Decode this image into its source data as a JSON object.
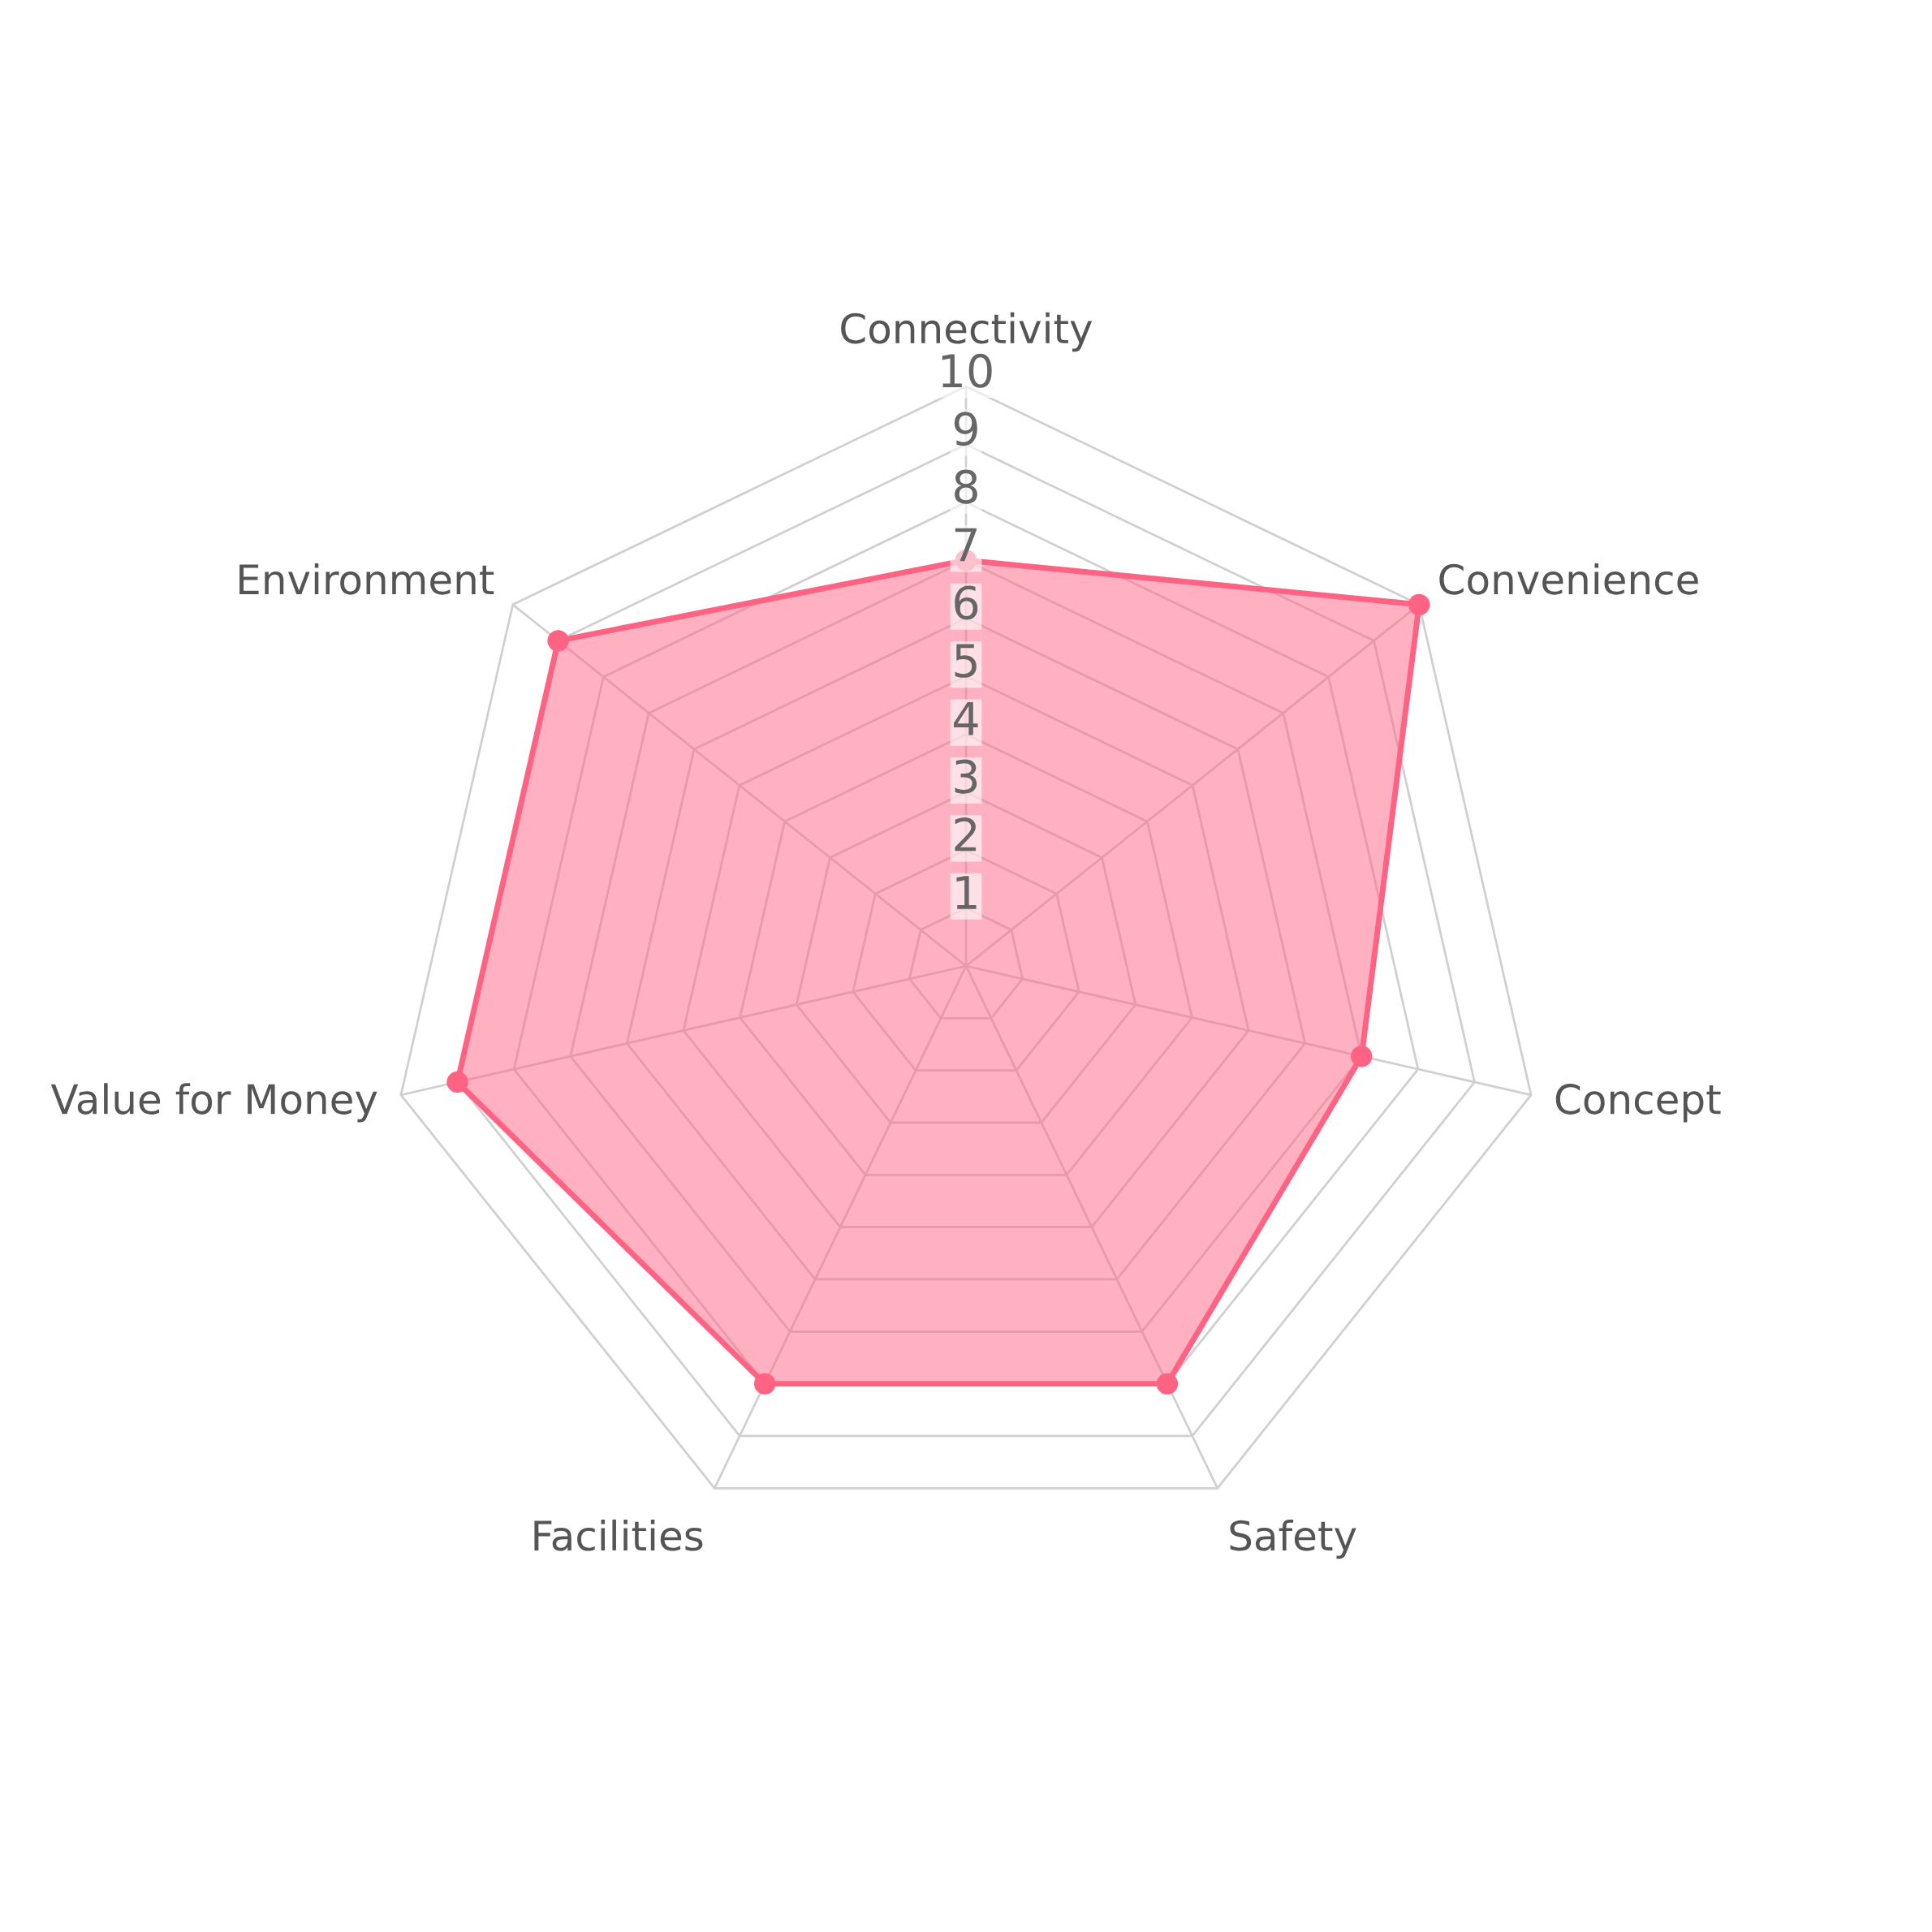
{
  "chart_data": {
    "type": "radar",
    "categories": [
      "Connectivity",
      "Convenience",
      "Concept",
      "Safety",
      "Facilities",
      "Value for Money",
      "Environment"
    ],
    "series": [
      {
        "color": "#ff6384",
        "values": [
          7,
          10,
          7,
          8,
          8,
          9,
          9
        ]
      }
    ],
    "ylim": [
      0,
      10
    ],
    "yticks": [
      1,
      2,
      3,
      4,
      5,
      6,
      7,
      8,
      9,
      10
    ],
    "grid": true,
    "marker": "circle"
  }
}
